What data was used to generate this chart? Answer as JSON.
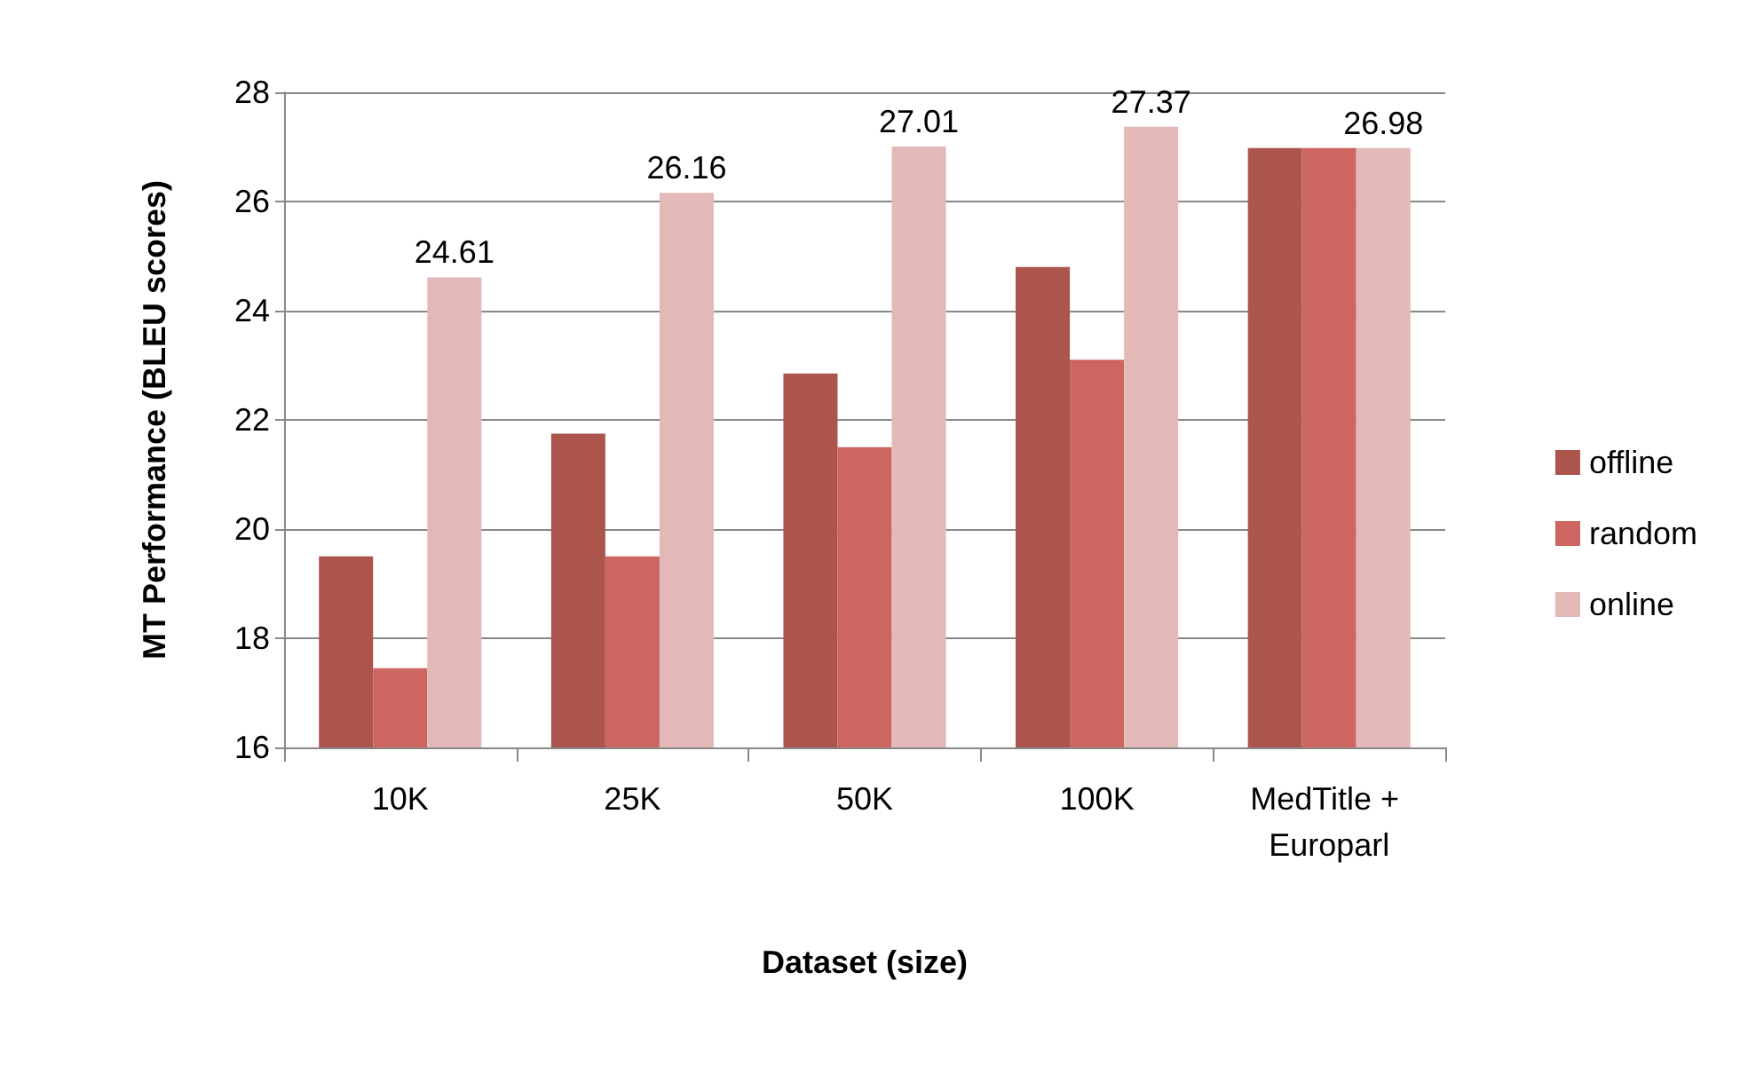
{
  "chart_data": {
    "type": "bar",
    "xlabel": "Dataset (size)",
    "ylabel": "MT Performance (BLEU scores)",
    "categories": [
      "10K",
      "25K",
      "50K",
      "100K",
      "MedTitle + Europarl"
    ],
    "series": [
      {
        "name": "offline",
        "color": "#ab554d",
        "values": [
          19.5,
          21.75,
          22.85,
          24.8,
          26.98
        ]
      },
      {
        "name": "random",
        "color": "#cd6660",
        "values": [
          17.45,
          19.5,
          21.5,
          23.1,
          26.98
        ]
      },
      {
        "name": "online",
        "color": "#e3b9b8",
        "values": [
          24.61,
          26.16,
          27.01,
          27.37,
          26.98
        ],
        "value_labels": [
          "24.61",
          "26.16",
          "27.01",
          "27.37",
          "26.98"
        ]
      }
    ],
    "ylim": [
      16,
      28
    ],
    "yticks": [
      16,
      18,
      20,
      22,
      24,
      26,
      28
    ],
    "grid": "y",
    "legend": "right"
  }
}
